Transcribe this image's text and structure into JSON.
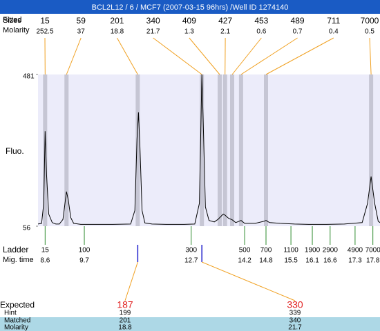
{
  "chart_data": {
    "type": "electropherogram",
    "title": "BCL2L12 / 6 / MCF7 (2007-03-15 96hrs) /Well ID 1274140",
    "labels": {
      "sizes": "Sizes",
      "fitted": "Fitted",
      "molarity": "Molarity",
      "y_axis": "Fluo.",
      "ladder": "Ladder",
      "mig_time": "Mig. time",
      "expected": "Expected",
      "hint": "Hint",
      "matched": "Matched",
      "molarity_bottom": "Molarity"
    },
    "xlim": [
      8.4,
      18.0
    ],
    "ylim": [
      56,
      481
    ],
    "yticks": [
      481,
      56
    ],
    "peaks": {
      "sizes": [
        15,
        59,
        201,
        340,
        409,
        427,
        453,
        489,
        711,
        7000
      ],
      "molarity": [
        252.5,
        37,
        18.8,
        21.7,
        1.3,
        2.1,
        0.6,
        0.7,
        0.4,
        0.5
      ],
      "mig_times": [
        8.6,
        9.2,
        11.2,
        13.0,
        13.5,
        13.65,
        13.85,
        14.1,
        14.8,
        17.75
      ],
      "color": "#f0a020"
    },
    "ladder": {
      "sizes": [
        15,
        100,
        300,
        500,
        700,
        1100,
        1900,
        2900,
        4900,
        7000
      ],
      "mig_times": [
        8.6,
        9.7,
        12.7,
        14.2,
        14.8,
        15.5,
        16.1,
        16.6,
        17.3,
        17.8
      ],
      "color": "#2e8b2e"
    },
    "trace": {
      "x": [
        8.4,
        8.5,
        8.56,
        8.6,
        8.64,
        8.7,
        8.8,
        8.9,
        9.0,
        9.1,
        9.17,
        9.2,
        9.25,
        9.32,
        9.4,
        9.6,
        10.0,
        10.5,
        11.0,
        11.12,
        11.18,
        11.22,
        11.26,
        11.32,
        11.4,
        11.6,
        12.0,
        12.5,
        12.8,
        12.93,
        13.0,
        13.05,
        13.1,
        13.2,
        13.35,
        13.45,
        13.5,
        13.6,
        13.65,
        13.75,
        13.85,
        13.95,
        14.1,
        14.2,
        14.5,
        14.75,
        14.8,
        14.9,
        15.2,
        15.6,
        16.0,
        16.5,
        17.0,
        17.5,
        17.65,
        17.75,
        17.85,
        17.95,
        18.0
      ],
      "values": [
        62,
        64,
        120,
        322,
        200,
        90,
        66,
        62,
        62,
        75,
        130,
        153,
        130,
        80,
        64,
        61,
        61,
        61,
        62,
        100,
        300,
        375,
        280,
        100,
        65,
        62,
        61,
        61,
        62,
        120,
        481,
        300,
        110,
        72,
        68,
        75,
        80,
        90,
        87,
        78,
        74,
        66,
        72,
        64,
        64,
        70,
        72,
        66,
        64,
        62,
        61,
        61,
        62,
        66,
        120,
        195,
        120,
        70,
        66
      ],
      "color": "#000000"
    },
    "expected": [
      {
        "value": 187,
        "hint": 199,
        "matched": 201,
        "molarity": 18.8,
        "mig_time": 11.2
      },
      {
        "value": 330,
        "hint": 339,
        "matched": 340,
        "molarity": 21.7,
        "mig_time": 13.0
      }
    ]
  }
}
